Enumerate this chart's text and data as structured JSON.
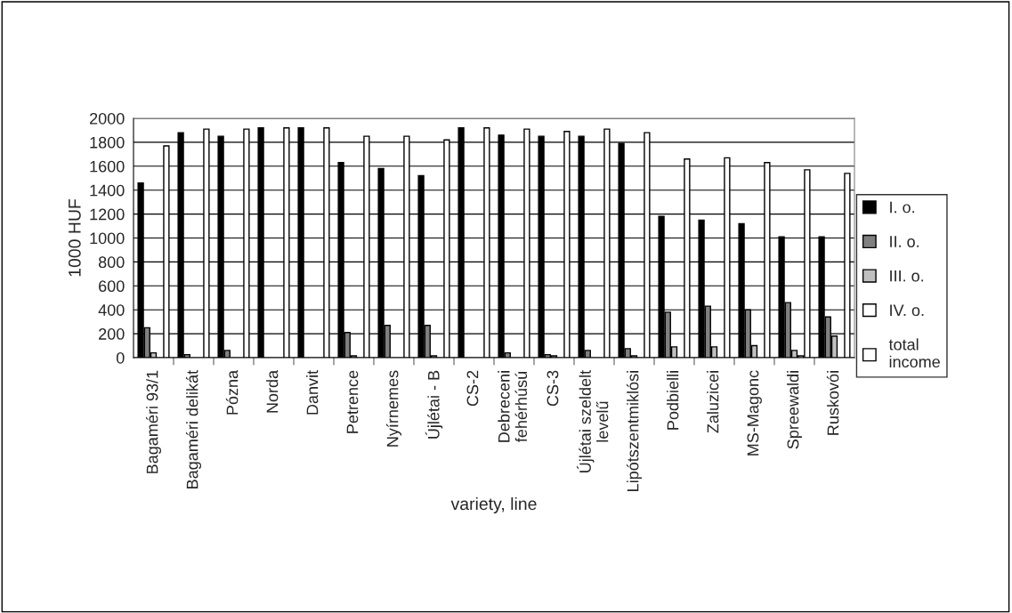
{
  "chart_data": {
    "type": "bar",
    "xlabel": "variety, line",
    "ylabel": "1000 HUF",
    "categories": [
      "Bagaméri 93/1",
      "Bagaméri delikát",
      "Pózna",
      "Norda",
      "Danvit",
      "Petrence",
      "Nyírnemes",
      "Újlétai - B",
      "CS-2",
      "Debreceni\nfehérhúsú",
      "CS-3",
      "Újlétai szeldelt\nlevelű",
      "Lipótszentmiklósi",
      "Podbielli",
      "Zaluzicei",
      "MS-Magonc",
      "Spreewaldi",
      "Ruskovói"
    ],
    "series": [
      {
        "name": "I. o.",
        "color": "#000000",
        "values": [
          1460,
          1880,
          1850,
          1920,
          1920,
          1630,
          1580,
          1520,
          1920,
          1860,
          1850,
          1850,
          1790,
          1180,
          1150,
          1120,
          1010,
          1010
        ]
      },
      {
        "name": "II. o.",
        "color": "#808080",
        "values": [
          250,
          25,
          60,
          null,
          null,
          210,
          270,
          270,
          null,
          40,
          25,
          60,
          75,
          380,
          430,
          400,
          460,
          340
        ]
      },
      {
        "name": "III. o.",
        "color": "#c0c0c0",
        "values": [
          40,
          null,
          null,
          null,
          null,
          15,
          null,
          15,
          null,
          null,
          15,
          null,
          15,
          90,
          90,
          100,
          60,
          180
        ]
      },
      {
        "name": "IV. o.",
        "color": "#ffffff",
        "values": [
          null,
          null,
          null,
          null,
          null,
          null,
          null,
          null,
          null,
          null,
          null,
          null,
          null,
          null,
          null,
          null,
          15,
          null
        ]
      },
      {
        "name": "total\nincome",
        "color": "#ffffff",
        "values": [
          1770,
          1910,
          1910,
          1920,
          1920,
          1850,
          1850,
          1820,
          1920,
          1910,
          1890,
          1910,
          1880,
          1660,
          1670,
          1630,
          1570,
          1540
        ]
      }
    ],
    "ylim": [
      0,
      2000
    ],
    "yticks": [
      0,
      200,
      400,
      600,
      800,
      1000,
      1200,
      1400,
      1600,
      1800,
      2000
    ],
    "grid": "y",
    "legend": "right"
  }
}
